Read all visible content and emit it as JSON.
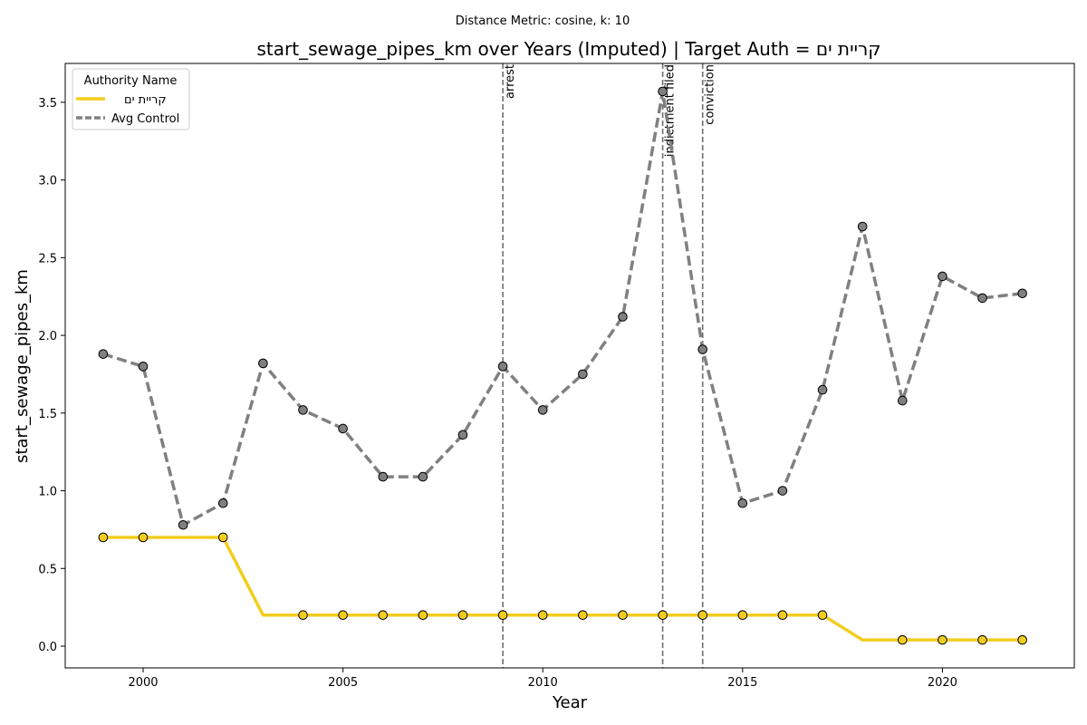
{
  "chart_data": {
    "type": "line",
    "suptitle": "Distance Metric: cosine, k: 10",
    "title": "start_sewage_pipes_km over Years (Imputed) | Target Auth = קריית ים",
    "xlabel": "Year",
    "ylabel": "start_sewage_pipes_km",
    "xlim": [
      1998.05,
      2023.3
    ],
    "ylim": [
      -0.14,
      3.75
    ],
    "xticks": [
      2000,
      2005,
      2010,
      2015,
      2020
    ],
    "yticks": [
      0.0,
      0.5,
      1.0,
      1.5,
      2.0,
      2.5,
      3.0,
      3.5
    ],
    "ytick_labels": [
      "0.0",
      "0.5",
      "1.0",
      "1.5",
      "2.0",
      "2.5",
      "3.0",
      "3.5"
    ],
    "legend": {
      "title": "Authority Name",
      "position": "top-left"
    },
    "x": [
      1999,
      2000,
      2001,
      2002,
      2003,
      2004,
      2005,
      2006,
      2007,
      2008,
      2009,
      2010,
      2011,
      2012,
      2013,
      2014,
      2015,
      2016,
      2017,
      2018,
      2019,
      2020,
      2021,
      2022
    ],
    "series": [
      {
        "name": "קריית ים",
        "color": "#f2cd1f",
        "style": "solid",
        "values": [
          0.7,
          0.7,
          0.7,
          0.7,
          0.2,
          0.2,
          0.2,
          0.2,
          0.2,
          0.2,
          0.2,
          0.2,
          0.2,
          0.2,
          0.2,
          0.2,
          0.2,
          0.2,
          0.2,
          0.04,
          0.04,
          0.04,
          0.04,
          0.04
        ],
        "markers": [
          true,
          true,
          false,
          true,
          false,
          true,
          true,
          true,
          true,
          true,
          true,
          true,
          true,
          true,
          true,
          true,
          true,
          true,
          true,
          false,
          true,
          true,
          true,
          true
        ]
      },
      {
        "name": "Avg Control",
        "color": "#808080",
        "style": "dashed",
        "values": [
          1.88,
          1.8,
          0.78,
          0.92,
          1.82,
          1.52,
          1.4,
          1.09,
          1.09,
          1.36,
          1.8,
          1.52,
          1.75,
          2.12,
          3.57,
          1.91,
          0.92,
          1.0,
          1.65,
          2.7,
          1.58,
          2.38,
          2.24,
          2.27
        ],
        "markers": [
          true,
          true,
          true,
          true,
          true,
          true,
          true,
          true,
          true,
          true,
          true,
          true,
          true,
          true,
          true,
          true,
          true,
          true,
          true,
          true,
          true,
          true,
          true,
          true
        ]
      }
    ],
    "events": [
      {
        "x": 2009,
        "label": "arrest"
      },
      {
        "x": 2013,
        "label": "indictment filed"
      },
      {
        "x": 2014,
        "label": "conviction"
      }
    ]
  }
}
